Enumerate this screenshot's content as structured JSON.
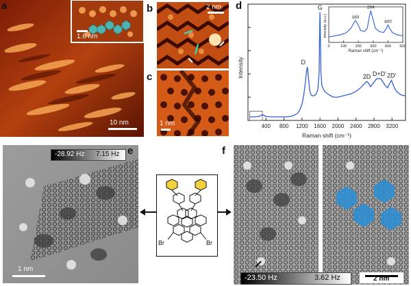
{
  "panels": {
    "a": {
      "label": "a",
      "scalebar": "10 nm",
      "inset_scalebar": "1.6 nm"
    },
    "b": {
      "label": "b",
      "scalebar": "2 nm"
    },
    "c": {
      "label": "c",
      "scalebar": "1 nm"
    },
    "d": {
      "label": "d"
    },
    "e": {
      "label": "e",
      "freq_min": "-28.92 Hz",
      "freq_max": "7.15 Hz",
      "scalebar": "1 nm"
    },
    "f": {
      "label": "f",
      "freq_min": "-23.50 Hz",
      "freq_max": "3.62 Hz",
      "scalebar": "2 nm"
    },
    "molecule": {
      "br_left": "Br",
      "br_right": "Br"
    }
  },
  "colors": {
    "stm_dark": "#3a0a00",
    "stm_mid": "#c2410c",
    "stm_light": "#fbbf6a",
    "spectrum_line": "#2f5fd6",
    "highlight_blue": "#2a8fd6",
    "phenyl_yellow": "#f2d23c"
  },
  "chart_data": {
    "type": "line",
    "xlabel": "Raman shift (cm⁻¹)",
    "ylabel": "Intensity",
    "xlim": [
      0,
      3500
    ],
    "xticks": [
      400,
      800,
      1200,
      1600,
      2000,
      2400,
      2800,
      3200
    ],
    "peaks": [
      {
        "label": "D",
        "x": 1320
      },
      {
        "label": "G",
        "x": 1600
      },
      {
        "label": "2D",
        "x": 2640
      },
      {
        "label": "D+D'",
        "x": 2920
      },
      {
        "label": "2D'",
        "x": 3190
      }
    ],
    "series": [
      {
        "x": [
          40,
          150,
          250,
          320,
          400,
          500,
          600,
          700,
          800,
          900,
          1000,
          1100,
          1150,
          1200,
          1240,
          1280,
          1300,
          1320,
          1340,
          1370,
          1400,
          1450,
          1500,
          1550,
          1580,
          1590,
          1600,
          1610,
          1620,
          1640,
          1700,
          1800,
          1900,
          2000,
          2100,
          2200,
          2300,
          2400,
          2500,
          2550,
          2600,
          2640,
          2680,
          2720,
          2760,
          2800,
          2850,
          2880,
          2920,
          2960,
          3000,
          3050,
          3100,
          3150,
          3190,
          3230,
          3280,
          3330,
          3400,
          3500
        ],
        "y": [
          3,
          3,
          3.5,
          5,
          3.5,
          3,
          3,
          3,
          3,
          3.2,
          4,
          6,
          9,
          14,
          22,
          34,
          42,
          46,
          38,
          26,
          22,
          21,
          22,
          26,
          40,
          70,
          93,
          70,
          42,
          30,
          25,
          22,
          20,
          20,
          21,
          22,
          23,
          25,
          28,
          30,
          32,
          33.5,
          32,
          29,
          31,
          33,
          35.5,
          36,
          36,
          35.5,
          33,
          30,
          28,
          32,
          34.5,
          30,
          26,
          24,
          22,
          21
        ]
      }
    ],
    "inset": {
      "xlabel": "Raman shift (cm⁻¹)",
      "ylabel": "Intensity (a.u.)",
      "xlim": [
        0,
        500
      ],
      "xticks": [
        0,
        100,
        200,
        300,
        400,
        500
      ],
      "peak_labels": [
        {
          "label": "180",
          "x": 180
        },
        {
          "label": "284",
          "x": 284
        },
        {
          "label": "400",
          "x": 400
        }
      ],
      "x": [
        0,
        40,
        80,
        120,
        150,
        170,
        180,
        195,
        215,
        240,
        260,
        275,
        284,
        295,
        315,
        340,
        370,
        390,
        400,
        412,
        430,
        460,
        500
      ],
      "y": [
        10,
        12,
        14,
        18,
        26,
        36,
        40,
        34,
        22,
        20,
        26,
        48,
        58,
        46,
        26,
        20,
        18,
        26,
        32,
        25,
        18,
        14,
        12
      ]
    }
  }
}
